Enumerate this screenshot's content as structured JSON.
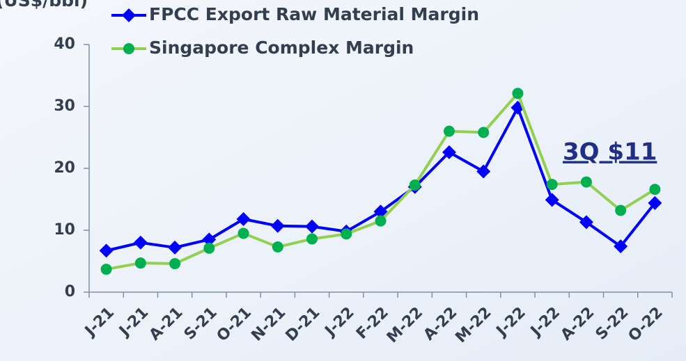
{
  "chart_data": {
    "type": "line",
    "y_label": "(US$/bbl)",
    "annotation": "3Q $11",
    "categories": [
      "J-21",
      "J-21",
      "A-21",
      "S-21",
      "O-21",
      "N-21",
      "D-21",
      "J-22",
      "F-22",
      "M-22",
      "A-22",
      "M-22",
      "J-22",
      "J-22",
      "A-22",
      "S-22",
      "O-22"
    ],
    "series": [
      {
        "name": "FPCC Export Raw Material Margin",
        "color": "#0000ff",
        "marker": "diamond",
        "values": [
          6.7,
          8.0,
          7.2,
          8.5,
          11.8,
          10.7,
          10.6,
          9.8,
          13.0,
          17.0,
          22.6,
          19.5,
          29.8,
          14.9,
          11.3,
          7.4,
          14.4
        ]
      },
      {
        "name": "Singapore Complex Margin",
        "color": "#92d050",
        "marker_color": "#00b050",
        "marker": "circle",
        "values": [
          3.7,
          4.7,
          4.6,
          7.1,
          9.5,
          7.3,
          8.6,
          9.4,
          11.5,
          17.3,
          26.0,
          25.8,
          32.1,
          17.4,
          17.8,
          13.2,
          16.6
        ]
      }
    ],
    "ylim": [
      0,
      40
    ],
    "yticks": [
      0,
      10,
      20,
      30,
      40
    ],
    "grid": false,
    "legend": "top"
  }
}
